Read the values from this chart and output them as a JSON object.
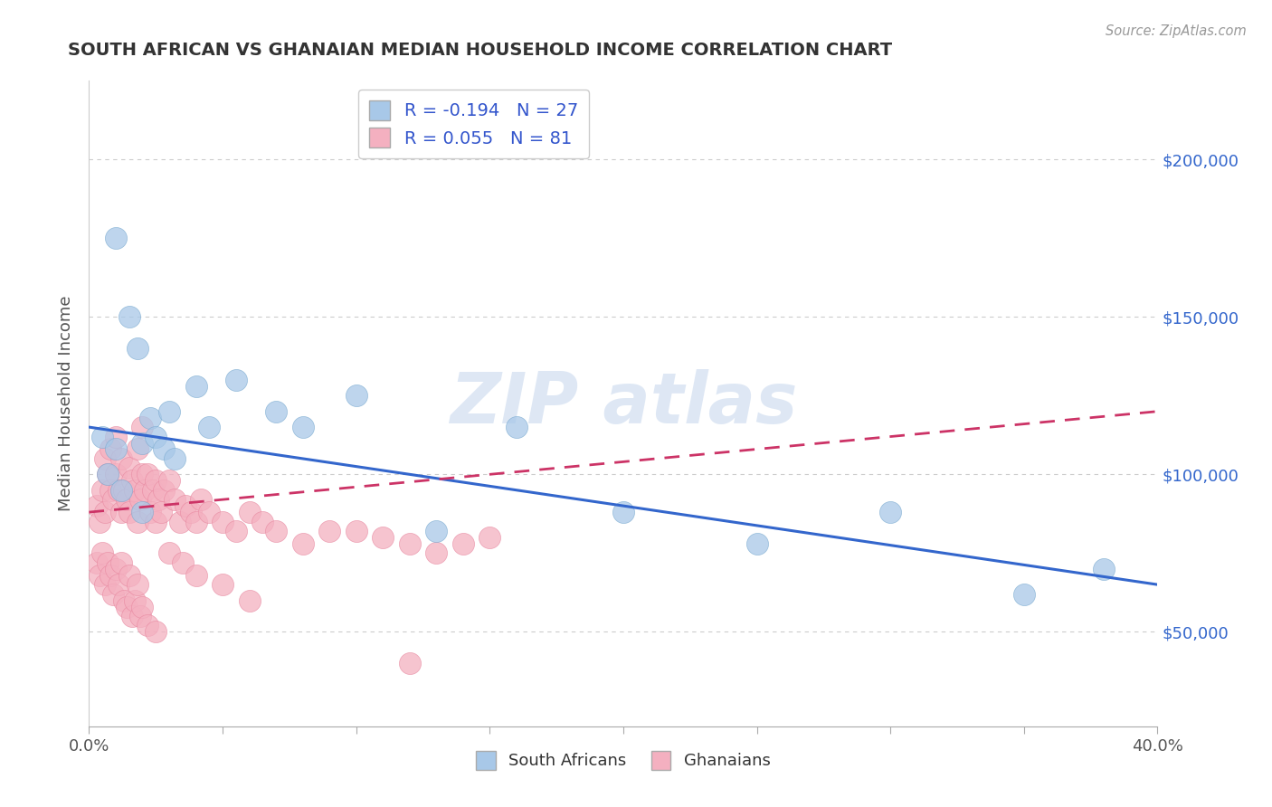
{
  "title": "SOUTH AFRICAN VS GHANAIAN MEDIAN HOUSEHOLD INCOME CORRELATION CHART",
  "source": "Source: ZipAtlas.com",
  "ylabel": "Median Household Income",
  "xlim": [
    0.0,
    0.4
  ],
  "ylim": [
    20000,
    225000
  ],
  "yticks": [
    50000,
    100000,
    150000,
    200000
  ],
  "ytick_labels": [
    "$50,000",
    "$100,000",
    "$150,000",
    "$200,000"
  ],
  "xticks": [
    0.0,
    0.05,
    0.1,
    0.15,
    0.2,
    0.25,
    0.3,
    0.35,
    0.4
  ],
  "xtick_labels": [
    "0.0%",
    "",
    "",
    "",
    "",
    "",
    "",
    "",
    "40.0%"
  ],
  "background_color": "#ffffff",
  "grid_color": "#cccccc",
  "title_color": "#333333",
  "source_color": "#999999",
  "blue_color": "#a8c8e8",
  "pink_color": "#f4b0c0",
  "blue_edge_color": "#7aaad0",
  "pink_edge_color": "#e888a0",
  "blue_line_color": "#3366cc",
  "pink_line_color": "#cc3366",
  "legend_text_color": "#3355cc",
  "r_blue": -0.194,
  "n_blue": 27,
  "r_pink": 0.055,
  "n_pink": 81,
  "south_african_x": [
    0.005,
    0.007,
    0.01,
    0.012,
    0.015,
    0.018,
    0.02,
    0.023,
    0.025,
    0.028,
    0.03,
    0.032,
    0.04,
    0.045,
    0.055,
    0.07,
    0.08,
    0.1,
    0.13,
    0.16,
    0.2,
    0.25,
    0.3,
    0.35,
    0.38,
    0.01,
    0.02
  ],
  "south_african_y": [
    112000,
    100000,
    108000,
    95000,
    150000,
    140000,
    110000,
    118000,
    112000,
    108000,
    120000,
    105000,
    128000,
    115000,
    130000,
    120000,
    115000,
    125000,
    82000,
    115000,
    88000,
    78000,
    88000,
    62000,
    70000,
    175000,
    88000
  ],
  "ghanaian_x": [
    0.003,
    0.004,
    0.005,
    0.006,
    0.006,
    0.007,
    0.008,
    0.008,
    0.009,
    0.01,
    0.01,
    0.011,
    0.012,
    0.012,
    0.013,
    0.014,
    0.015,
    0.015,
    0.016,
    0.017,
    0.018,
    0.018,
    0.019,
    0.02,
    0.02,
    0.021,
    0.022,
    0.023,
    0.024,
    0.025,
    0.025,
    0.026,
    0.027,
    0.028,
    0.03,
    0.032,
    0.034,
    0.036,
    0.038,
    0.04,
    0.042,
    0.045,
    0.05,
    0.055,
    0.06,
    0.065,
    0.07,
    0.08,
    0.09,
    0.1,
    0.11,
    0.12,
    0.13,
    0.14,
    0.15,
    0.003,
    0.004,
    0.005,
    0.006,
    0.007,
    0.008,
    0.009,
    0.01,
    0.011,
    0.012,
    0.013,
    0.014,
    0.015,
    0.016,
    0.017,
    0.018,
    0.019,
    0.02,
    0.022,
    0.025,
    0.03,
    0.035,
    0.04,
    0.05,
    0.06,
    0.12
  ],
  "ghanaian_y": [
    90000,
    85000,
    95000,
    105000,
    88000,
    100000,
    95000,
    108000,
    92000,
    100000,
    112000,
    95000,
    105000,
    88000,
    95000,
    92000,
    102000,
    88000,
    98000,
    95000,
    108000,
    85000,
    92000,
    100000,
    115000,
    95000,
    100000,
    88000,
    95000,
    98000,
    85000,
    92000,
    88000,
    95000,
    98000,
    92000,
    85000,
    90000,
    88000,
    85000,
    92000,
    88000,
    85000,
    82000,
    88000,
    85000,
    82000,
    78000,
    82000,
    82000,
    80000,
    78000,
    75000,
    78000,
    80000,
    72000,
    68000,
    75000,
    65000,
    72000,
    68000,
    62000,
    70000,
    65000,
    72000,
    60000,
    58000,
    68000,
    55000,
    60000,
    65000,
    55000,
    58000,
    52000,
    50000,
    75000,
    72000,
    68000,
    65000,
    60000,
    40000
  ]
}
